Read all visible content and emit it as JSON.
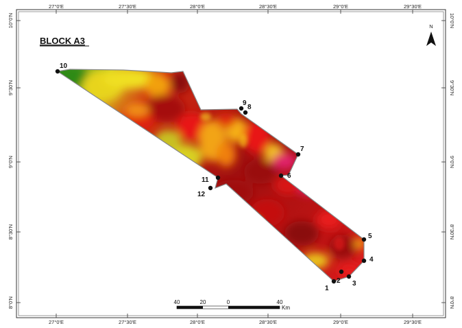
{
  "map": {
    "title": "BLOCK A3",
    "north_label": "N",
    "longitude_ticks": [
      "27°0'E",
      "27°30'E",
      "28°0'E",
      "28°30'E",
      "29°0'E",
      "29°30'E"
    ],
    "latitude_ticks": [
      "10°0'N",
      "9°30'N",
      "9°0'N",
      "8°30'N",
      "8°0'N"
    ],
    "corner_points": [
      "1",
      "2",
      "3",
      "4",
      "5",
      "6",
      "7",
      "8",
      "9",
      "10",
      "11",
      "12"
    ],
    "scale_bar": {
      "labels": [
        "40",
        "20",
        "0",
        "40"
      ],
      "unit": "Km"
    },
    "colors": {
      "dark_red": "#8b0a0a",
      "red": "#e01515",
      "orange": "#f28a10",
      "yellow": "#f3e020",
      "green": "#3d9a1e",
      "magenta": "#e0206a"
    }
  }
}
